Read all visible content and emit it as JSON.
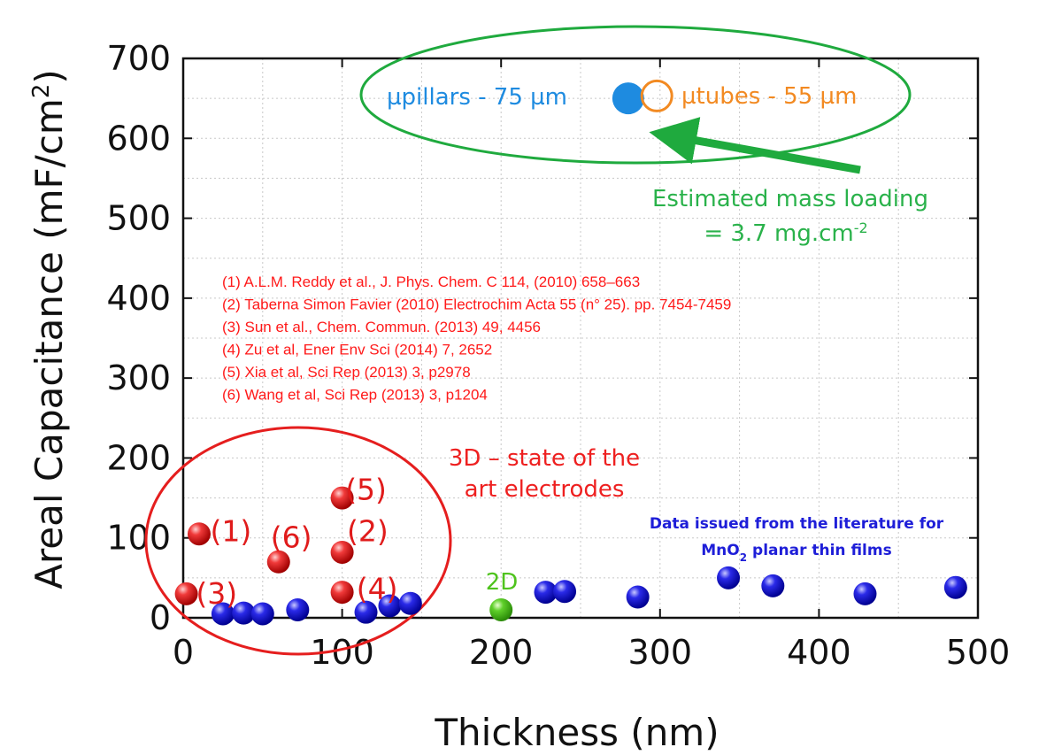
{
  "chart_data": {
    "type": "scatter",
    "xlabel": "Thickness (nm)",
    "ylabel_main": "Areal Capacitance (mF/cm",
    "ylabel_sup": "2",
    "ylabel_close": ")",
    "xlim": [
      0,
      500
    ],
    "ylim": [
      0,
      700
    ],
    "x_ticks": [
      0,
      100,
      200,
      300,
      400,
      500
    ],
    "y_ticks": [
      0,
      100,
      200,
      300,
      400,
      500,
      600,
      700
    ],
    "grid": true,
    "series": [
      {
        "points": [
          [
            10,
            105
          ],
          [
            60,
            70
          ],
          [
            100,
            150
          ],
          [
            100,
            82
          ],
          [
            100,
            32
          ],
          [
            2,
            30
          ]
        ],
        "color": "#e51e1e",
        "marker": "sphere"
      },
      {
        "points": [
          [
            25,
            5
          ],
          [
            38,
            6
          ],
          [
            50,
            5
          ],
          [
            72,
            10
          ],
          [
            115,
            7
          ],
          [
            130,
            15
          ],
          [
            143,
            18
          ],
          [
            228,
            32
          ],
          [
            240,
            33
          ],
          [
            286,
            26
          ],
          [
            343,
            50
          ],
          [
            371,
            40
          ],
          [
            429,
            30
          ],
          [
            486,
            38
          ]
        ],
        "color": "#1515d6",
        "marker": "sphere"
      },
      {
        "points": [
          [
            200,
            10
          ]
        ],
        "color": "#4fc31e",
        "marker": "sphere"
      },
      {
        "points": [
          [
            280,
            650
          ]
        ],
        "color": "#1e8be0",
        "marker": "filled-circle"
      },
      {
        "points": [
          [
            298,
            653
          ]
        ],
        "color": "#f28a22",
        "marker": "open-circle"
      }
    ],
    "point_labels": [
      {
        "text": "(1)",
        "x": 17,
        "y": 108
      },
      {
        "text": "(6)",
        "x": 55,
        "y": 100
      },
      {
        "text": "(5)",
        "x": 102,
        "y": 160
      },
      {
        "text": "(2)",
        "x": 103,
        "y": 108
      },
      {
        "text": "(3)",
        "x": 8,
        "y": 30
      },
      {
        "text": "(4)",
        "x": 109,
        "y": 36
      }
    ],
    "annotations": {
      "pillars_label": "µpillars - 75 µm",
      "tubes_label": "µtubes - 55 µm",
      "mass_line1": "Estimated mass loading",
      "mass_line2": "= 3.7 mg.cm",
      "mass_sup": "-2",
      "label_3d_line1": "3D – state of the",
      "label_3d_line2": "art electrodes",
      "label_2d": "2D",
      "lit_line1": "Data issued from the literature for",
      "lit_line2_pre": "MnO",
      "lit_line2_sub": "2",
      "lit_line2_post": " planar thin films"
    },
    "references": [
      "(1) A.L.M. Reddy et al., J. Phys. Chem. C 114, (2010) 658–663",
      "(2) Taberna Simon Favier (2010) Electrochim Acta 55 (n° 25). pp. 7454-7459",
      "(3) Sun et al., Chem. Commun. (2013) 49, 4456",
      "(4) Zu et al, Ener Env Sci (2014) 7, 2652",
      "(5) Xia et al, Sci Rep (2013) 3, p2978",
      "(6) Wang et al, Sci Rep (2013) 3, p1204"
    ],
    "colors": {
      "red": "#e51e1e",
      "blue": "#1515d6",
      "green": "#4fc31e",
      "green_annotation": "#2ab24b",
      "pillars": "#1e8be0",
      "tubes": "#f28a22"
    }
  }
}
